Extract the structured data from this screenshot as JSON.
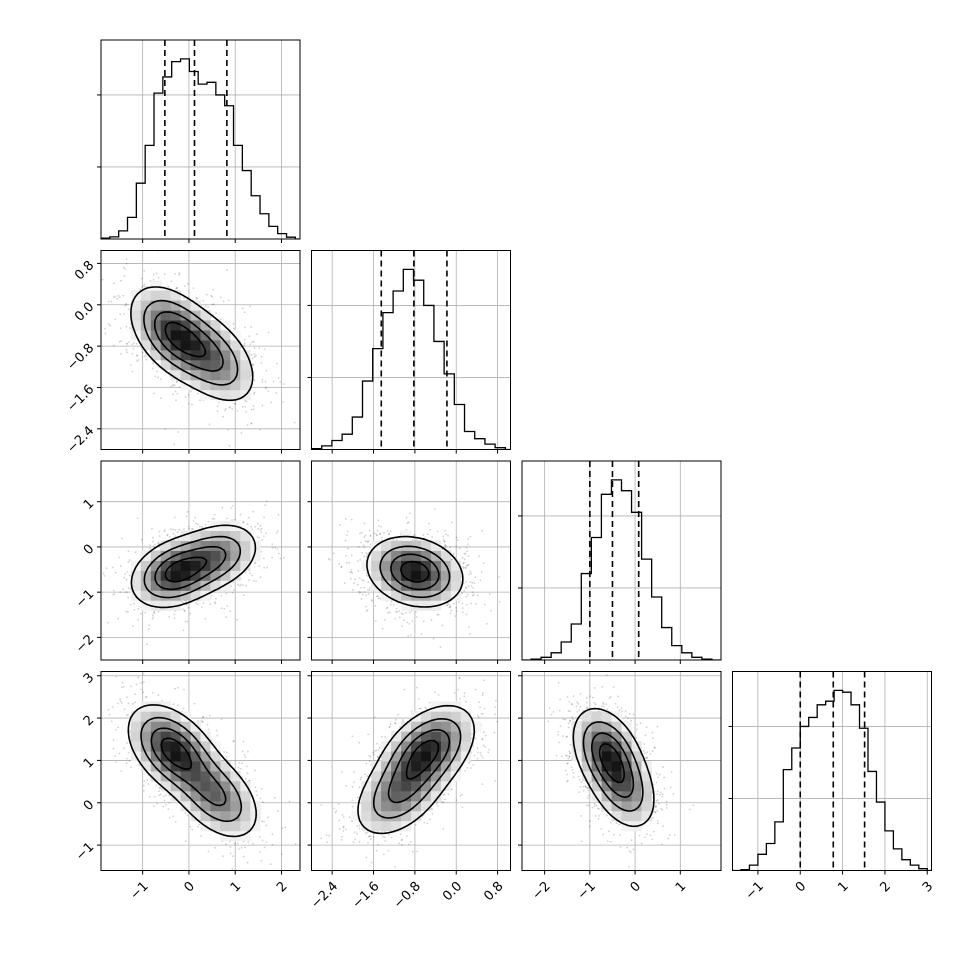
{
  "chart_data": {
    "type": "corner",
    "grid": true,
    "contour_levels": 4,
    "colors": {
      "line": "#000000",
      "grid": "#b0b0b0",
      "background": "#ffffff",
      "density_dark": "#1a1a1a",
      "density_light": "#ffffff"
    },
    "parameters": [
      {
        "index": 0,
        "range": [
          -1.9,
          2.4
        ],
        "ticks": [
          {
            "value": -1,
            "label": "−1"
          },
          {
            "value": 0,
            "label": "0"
          },
          {
            "value": 1,
            "label": "1"
          },
          {
            "value": 2,
            "label": "2"
          }
        ],
        "quantiles": [
          -0.52,
          0.12,
          0.82
        ],
        "hist_bins": [
          -1.9,
          2.3
        ],
        "hist_counts": [
          0.005,
          0.012,
          0.045,
          0.12,
          0.31,
          0.52,
          0.81,
          0.9,
          0.985,
          1.0,
          0.93,
          0.86,
          0.87,
          0.8,
          0.74,
          0.52,
          0.38,
          0.24,
          0.14,
          0.07,
          0.03,
          0.01
        ]
      },
      {
        "index": 1,
        "range": [
          -2.8,
          1.05
        ],
        "ticks": [
          {
            "value": -2.4,
            "label": "−2.4"
          },
          {
            "value": -1.6,
            "label": "−1.6"
          },
          {
            "value": -0.8,
            "label": "−0.8"
          },
          {
            "value": 0.0,
            "label": "0.0"
          },
          {
            "value": 0.8,
            "label": "0.8"
          }
        ],
        "quantiles": [
          -1.45,
          -0.82,
          -0.18
        ],
        "hist_bins": [
          -2.8,
          0.95
        ],
        "hist_counts": [
          0.005,
          0.02,
          0.05,
          0.085,
          0.18,
          0.38,
          0.56,
          0.76,
          0.88,
          1.0,
          0.94,
          0.8,
          0.6,
          0.42,
          0.25,
          0.1,
          0.06,
          0.03,
          0.01
        ]
      },
      {
        "index": 2,
        "range": [
          -2.5,
          1.9
        ],
        "ticks": [
          {
            "value": -2,
            "label": "−2"
          },
          {
            "value": -1,
            "label": "−1"
          },
          {
            "value": 0,
            "label": "0"
          },
          {
            "value": 1,
            "label": "1"
          }
        ],
        "quantiles": [
          -1.0,
          -0.5,
          0.08
        ],
        "hist_bins": [
          -2.3,
          1.7
        ],
        "hist_counts": [
          0.005,
          0.015,
          0.04,
          0.1,
          0.2,
          0.48,
          0.68,
          0.92,
          1.0,
          0.94,
          0.82,
          0.56,
          0.35,
          0.18,
          0.08,
          0.04,
          0.015,
          0.005
        ]
      },
      {
        "index": 3,
        "range": [
          -1.6,
          3.1
        ],
        "ticks": [
          {
            "value": -1,
            "label": "−1"
          },
          {
            "value": 0,
            "label": "0"
          },
          {
            "value": 1,
            "label": "1"
          },
          {
            "value": 2,
            "label": "2"
          },
          {
            "value": 3,
            "label": "3"
          }
        ],
        "quantiles": [
          0.0,
          0.78,
          1.52
        ],
        "hist_bins": [
          -1.4,
          3.0
        ],
        "hist_counts": [
          0.005,
          0.03,
          0.09,
          0.15,
          0.27,
          0.56,
          0.68,
          0.8,
          0.85,
          0.92,
          0.94,
          1.0,
          0.99,
          0.92,
          0.79,
          0.55,
          0.38,
          0.22,
          0.12,
          0.06,
          0.03,
          0.01
        ]
      }
    ],
    "pairs": [
      {
        "row": 1,
        "col": 0,
        "mean": [
          0.12,
          -0.82
        ],
        "sd": [
          0.65,
          0.62
        ],
        "corr": -0.55,
        "modes": [
          {
            "x": -0.32,
            "y": -0.55,
            "w": 0.6
          },
          {
            "x": 0.55,
            "y": -1.05,
            "w": 0.4
          }
        ]
      },
      {
        "row": 2,
        "col": 0,
        "mean": [
          0.12,
          -0.45
        ],
        "sd": [
          0.65,
          0.52
        ],
        "corr": 0.35,
        "modes": [
          {
            "x": -0.3,
            "y": -0.58,
            "w": 0.6
          },
          {
            "x": 0.6,
            "y": -0.2,
            "w": 0.4
          }
        ]
      },
      {
        "row": 2,
        "col": 1,
        "mean": [
          -0.82,
          -0.5
        ],
        "sd": [
          0.62,
          0.52
        ],
        "corr": -0.25,
        "modes": [
          {
            "x": -0.8,
            "y": -0.55,
            "w": 1.0
          }
        ]
      },
      {
        "row": 3,
        "col": 0,
        "mean": [
          0.12,
          0.78
        ],
        "sd": [
          0.65,
          0.72
        ],
        "corr": -0.55,
        "modes": [
          {
            "x": -0.35,
            "y": 1.25,
            "w": 0.6
          },
          {
            "x": 0.6,
            "y": 0.15,
            "w": 0.4
          }
        ]
      },
      {
        "row": 3,
        "col": 1,
        "mean": [
          -0.82,
          0.78
        ],
        "sd": [
          0.62,
          0.72
        ],
        "corr": 0.55,
        "modes": [
          {
            "x": -1.1,
            "y": 0.2,
            "w": 0.4
          },
          {
            "x": -0.55,
            "y": 1.25,
            "w": 0.6
          }
        ]
      },
      {
        "row": 3,
        "col": 2,
        "mean": [
          -0.5,
          0.78
        ],
        "sd": [
          0.52,
          0.72
        ],
        "corr": -0.45,
        "modes": [
          {
            "x": -0.62,
            "y": 1.2,
            "w": 0.6
          },
          {
            "x": -0.25,
            "y": 0.35,
            "w": 0.4
          }
        ]
      }
    ]
  }
}
